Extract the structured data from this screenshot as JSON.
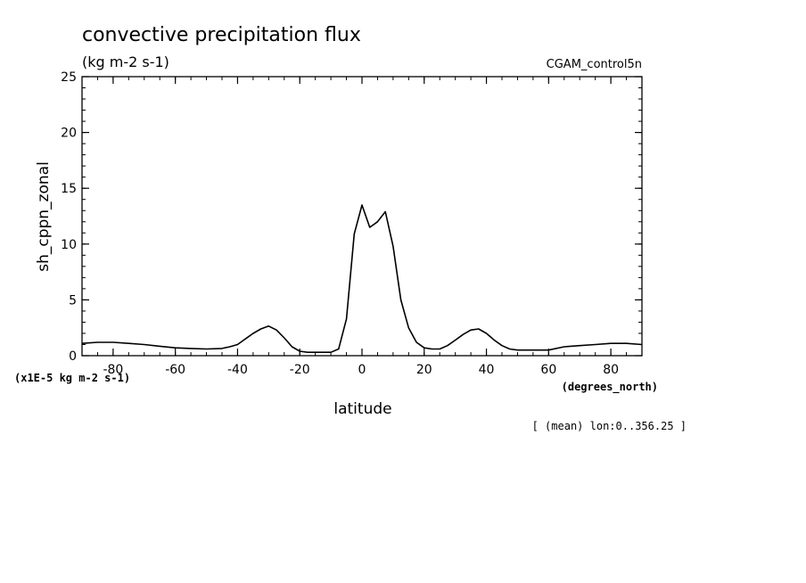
{
  "chart_data": {
    "type": "line",
    "title": "convective precipitation flux",
    "units": "(kg m-2 s-1)",
    "dataset": "CGAM_control5n",
    "ylabel": "sh_cppn_zonal",
    "xlabel": "latitude",
    "x_unit_label": "(degrees_north)",
    "y_scale_label": "(x1E-5 kg m-2 s-1)",
    "footer": "[ (mean) lon:0..356.25 ]",
    "xlim": [
      -90,
      90
    ],
    "ylim": [
      0,
      25
    ],
    "x_ticks": [
      -80,
      -60,
      -40,
      -20,
      0,
      20,
      40,
      60,
      80
    ],
    "x_tick_labels": [
      "-80",
      "-60",
      "-40",
      "-20",
      "0",
      "20",
      "40",
      "60",
      "80"
    ],
    "y_ticks": [
      0,
      5,
      10,
      15,
      20,
      25
    ],
    "y_tick_labels": [
      "0",
      "5",
      "10",
      "15",
      "20",
      "25"
    ],
    "grid": false,
    "legend": "none",
    "series": [
      {
        "color": "#000000",
        "x": [
          -90,
          -85,
          -80,
          -75,
          -70,
          -65,
          -60,
          -55,
          -50,
          -45,
          -42.5,
          -40,
          -37.5,
          -35,
          -32.5,
          -30,
          -27.5,
          -25,
          -22.5,
          -20,
          -17.5,
          -15,
          -12.5,
          -10,
          -7.5,
          -5,
          -2.5,
          0,
          2.5,
          5,
          7.5,
          10,
          12.5,
          15,
          17.5,
          20,
          22.5,
          25,
          27.5,
          30,
          32.5,
          35,
          37.5,
          40,
          42.5,
          45,
          47.5,
          50,
          55,
          60,
          65,
          70,
          75,
          80,
          85,
          90
        ],
        "values": [
          1.1,
          1.2,
          1.2,
          1.1,
          1.0,
          0.85,
          0.7,
          0.65,
          0.6,
          0.65,
          0.8,
          1.0,
          1.5,
          2.0,
          2.4,
          2.65,
          2.3,
          1.6,
          0.8,
          0.4,
          0.3,
          0.3,
          0.3,
          0.3,
          0.6,
          3.3,
          10.9,
          13.5,
          11.5,
          12.0,
          12.9,
          9.8,
          5.0,
          2.5,
          1.2,
          0.7,
          0.6,
          0.6,
          0.9,
          1.4,
          1.9,
          2.3,
          2.4,
          2.0,
          1.4,
          0.9,
          0.6,
          0.5,
          0.5,
          0.5,
          0.8,
          0.9,
          1.0,
          1.1,
          1.1,
          1.0
        ]
      }
    ]
  }
}
